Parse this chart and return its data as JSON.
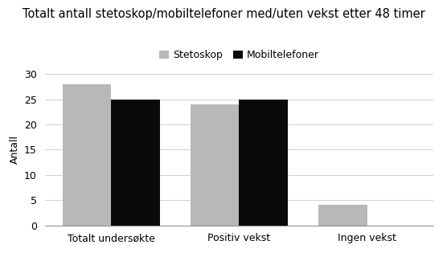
{
  "title": "Totalt antall stetoskop/mobiltelefoner med/uten vekst etter 48 timer",
  "categories": [
    "Totalt undersøkte",
    "Positiv vekst",
    "Ingen vekst"
  ],
  "stetoskop": [
    28,
    24,
    4
  ],
  "mobiltelefoner": [
    25,
    25,
    0
  ],
  "stetoskop_color": "#b8b8b8",
  "mobiltelefoner_color": "#0a0a0a",
  "ylabel": "Antall",
  "ylim": [
    0,
    30
  ],
  "yticks": [
    0,
    5,
    10,
    15,
    20,
    25,
    30
  ],
  "legend_labels": [
    "Stetoskop",
    "Mobiltelefoner"
  ],
  "bar_width": 0.38,
  "background_color": "#ffffff",
  "title_fontsize": 10.5,
  "axis_fontsize": 9,
  "tick_fontsize": 9,
  "legend_fontsize": 9
}
